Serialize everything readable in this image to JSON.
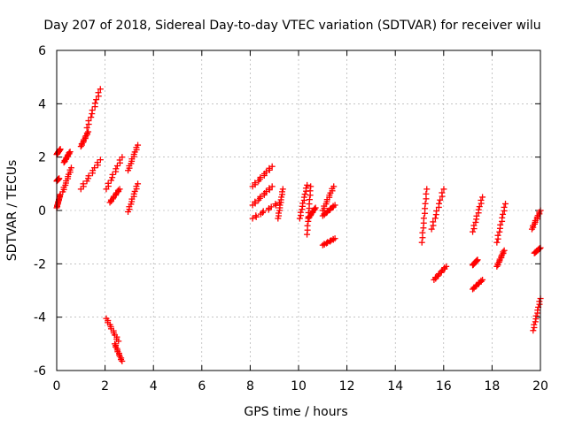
{
  "chart_data": {
    "type": "scatter",
    "title": "Day 207 of 2018, Sidereal Day-to-day VTEC variation (SDTVAR) for receiver wilu",
    "xlabel": "GPS time / hours",
    "ylabel": "SDTVAR / TECUs",
    "xlim": [
      0,
      20
    ],
    "ylim": [
      -6,
      6
    ],
    "xticks": [
      0,
      2,
      4,
      6,
      8,
      10,
      12,
      14,
      16,
      18,
      20
    ],
    "yticks": [
      -6,
      -4,
      -2,
      0,
      2,
      4,
      6
    ],
    "grid": true,
    "marker": "+",
    "colors": {
      "marker": "#ff0000",
      "grid": "#a0a0a0",
      "axis": "#000000",
      "text": "#000000"
    },
    "clusters": [
      {
        "x": [
          0.0,
          0.1
        ],
        "y": [
          1.1,
          1.2
        ]
      },
      {
        "x": [
          0.0,
          0.15
        ],
        "y": [
          2.1,
          2.3
        ]
      },
      {
        "x": [
          0.0,
          0.15
        ],
        "y": [
          0.1,
          0.6
        ]
      },
      {
        "x": [
          0.25,
          0.6
        ],
        "y": [
          0.7,
          1.6
        ]
      },
      {
        "x": [
          0.3,
          0.55
        ],
        "y": [
          1.8,
          2.2
        ]
      },
      {
        "x": [
          1.0,
          1.3
        ],
        "y": [
          2.4,
          2.95
        ]
      },
      {
        "x": [
          1.25,
          1.8
        ],
        "y": [
          3.1,
          4.55
        ]
      },
      {
        "x": [
          1.0,
          1.8
        ],
        "y": [
          0.8,
          1.9
        ]
      },
      {
        "x": [
          2.05,
          2.55
        ],
        "y": [
          -4.05,
          -4.9
        ]
      },
      {
        "x": [
          2.4,
          2.7
        ],
        "y": [
          -5.0,
          -5.65
        ]
      },
      {
        "x": [
          2.05,
          2.7
        ],
        "y": [
          0.8,
          2.0
        ]
      },
      {
        "x": [
          2.2,
          2.6
        ],
        "y": [
          0.3,
          0.8
        ]
      },
      {
        "x": [
          2.95,
          3.35
        ],
        "y": [
          1.5,
          2.45
        ]
      },
      {
        "x": [
          2.95,
          3.35
        ],
        "y": [
          -0.05,
          1.0
        ]
      },
      {
        "x": [
          8.1,
          8.9
        ],
        "y": [
          0.9,
          1.65
        ]
      },
      {
        "x": [
          8.1,
          8.9
        ],
        "y": [
          0.2,
          0.9
        ]
      },
      {
        "x": [
          8.1,
          9.2
        ],
        "y": [
          -0.3,
          0.3
        ]
      },
      {
        "x": [
          9.15,
          9.35
        ],
        "y": [
          -0.3,
          0.8
        ]
      },
      {
        "x": [
          10.05,
          10.35
        ],
        "y": [
          -0.3,
          0.95
        ]
      },
      {
        "x": [
          10.35,
          10.5
        ],
        "y": [
          -0.9,
          0.9
        ]
      },
      {
        "x": [
          10.4,
          10.7
        ],
        "y": [
          -0.3,
          0.1
        ]
      },
      {
        "x": [
          11.0,
          11.45
        ],
        "y": [
          0.0,
          0.9
        ]
      },
      {
        "x": [
          11.0,
          11.5
        ],
        "y": [
          -0.2,
          0.2
        ]
      },
      {
        "x": [
          11.0,
          11.5
        ],
        "y": [
          -1.3,
          -1.05
        ]
      },
      {
        "x": [
          15.1,
          15.3
        ],
        "y": [
          -1.2,
          0.8
        ]
      },
      {
        "x": [
          15.5,
          16.0
        ],
        "y": [
          -0.7,
          0.8
        ]
      },
      {
        "x": [
          15.6,
          16.1
        ],
        "y": [
          -2.6,
          -2.1
        ]
      },
      {
        "x": [
          17.2,
          17.6
        ],
        "y": [
          -0.8,
          0.5
        ]
      },
      {
        "x": [
          17.2,
          17.6
        ],
        "y": [
          -2.95,
          -2.6
        ]
      },
      {
        "x": [
          17.2,
          17.4
        ],
        "y": [
          -2.05,
          -1.85
        ]
      },
      {
        "x": [
          18.2,
          18.55
        ],
        "y": [
          -1.2,
          0.25
        ]
      },
      {
        "x": [
          18.2,
          18.5
        ],
        "y": [
          -2.1,
          -1.5
        ]
      },
      {
        "x": [
          19.65,
          20.0
        ],
        "y": [
          -0.7,
          0.0
        ]
      },
      {
        "x": [
          19.7,
          20.0
        ],
        "y": [
          -4.5,
          -3.3
        ]
      },
      {
        "x": [
          19.75,
          20.0
        ],
        "y": [
          -1.6,
          -1.4
        ]
      }
    ]
  }
}
